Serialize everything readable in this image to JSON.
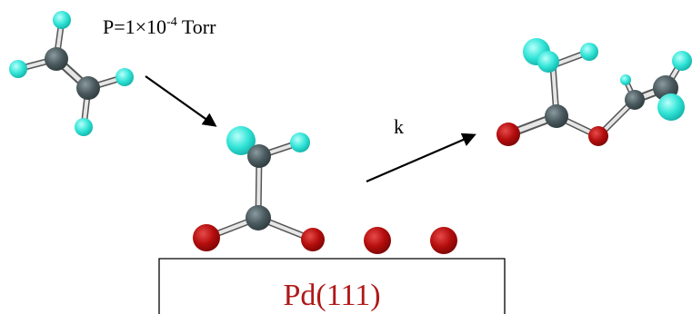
{
  "pressure": {
    "prefix": "P=1×10",
    "exponent": "-4",
    "unit": " Torr"
  },
  "rate_label": "k",
  "surface_label": "Pd(111)",
  "colors": {
    "carbon": "#4a5a5e",
    "hydrogen": "#33e5d8",
    "oxygen": "#b50d0d",
    "surface_label": "#b01818",
    "bond": "#e6e6e6",
    "bond_edge": "#555555",
    "arrow": "#000000",
    "slab_border": "#000000"
  }
}
